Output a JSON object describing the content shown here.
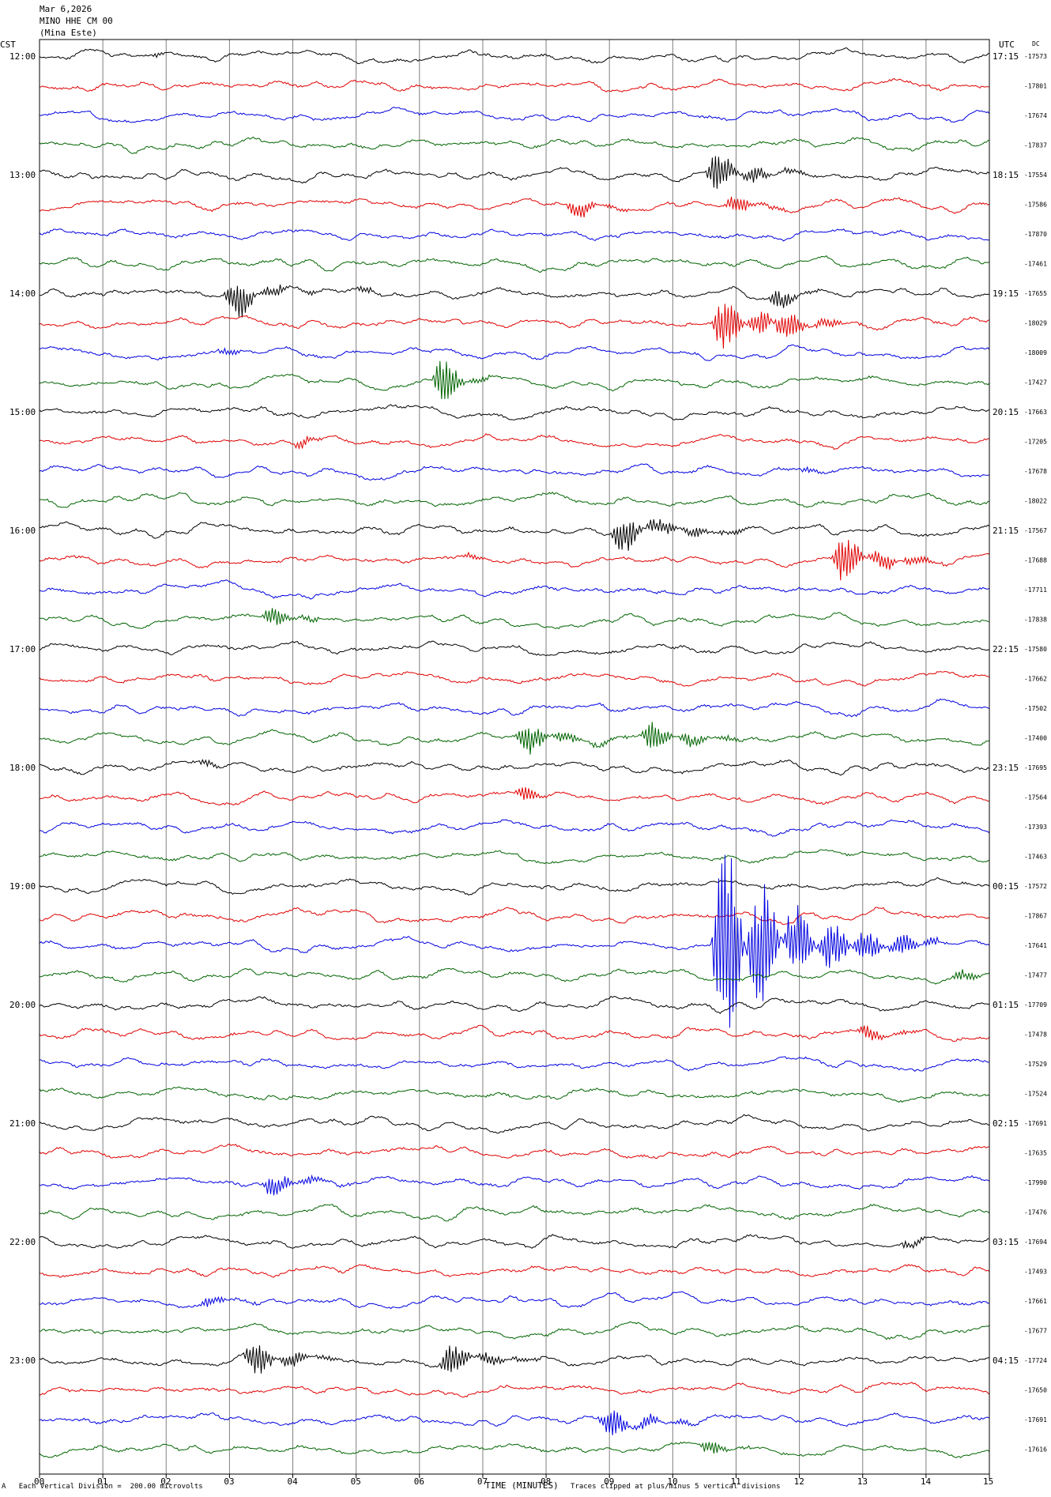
{
  "header": {
    "date": "Mar 6,2026",
    "station": "MINO HHE CM 00",
    "location": "(Mina Este)"
  },
  "labels": {
    "left_zone": "CST",
    "right_zone": "UTC",
    "dc": "DC"
  },
  "footer": {
    "scale_note": "Each Vertical Division =  200.00 microvolts",
    "scale_mark": "A",
    "x_title": "TIME (MINUTES)",
    "clip_note": "Traces clipped at plus/minus 5 vertical divisions"
  },
  "colors": {
    "cycle": [
      "#000000",
      "#e00000",
      "#0000e0",
      "#006400"
    ],
    "grid": "#808080",
    "frame": "#000000"
  },
  "chart_data": {
    "type": "line",
    "title": "",
    "xlabel": "TIME (MINUTES)",
    "xlim": [
      0,
      15
    ],
    "x_ticks": [
      "00",
      "01",
      "02",
      "03",
      "04",
      "05",
      "06",
      "07",
      "08",
      "09",
      "10",
      "11",
      "12",
      "13",
      "14",
      "15"
    ],
    "rows_per_hour": 4,
    "minutes_per_row": 15,
    "left_hour_labels": [
      "12:00",
      "13:00",
      "14:00",
      "15:00",
      "16:00",
      "17:00",
      "18:00",
      "19:00",
      "20:00",
      "21:00",
      "22:00",
      "23:00"
    ],
    "right_hour_labels": [
      "17:15",
      "18:15",
      "19:15",
      "20:15",
      "21:15",
      "22:15",
      "23:15",
      "00:15",
      "01:15",
      "02:15",
      "03:15",
      "04:15"
    ],
    "dc_offsets": [
      "-17573",
      "-17801",
      "-17674",
      "-17837",
      "-17554",
      "-17586",
      "-17870",
      "-17461",
      "-17655",
      "-18029",
      "-18009",
      "-17427",
      "-17663",
      "-17205",
      "-17678",
      "-18022",
      "-17567",
      "-17688",
      "-17711",
      "-17838",
      "-17580",
      "-17662",
      "-17502",
      "-17400",
      "-17695",
      "-17564",
      "-17393",
      "-17463",
      "-17572",
      "-17867",
      "-17641",
      "-17477",
      "-17709",
      "-17478",
      "-17529",
      "-17524",
      "-17691",
      "-17635",
      "-17990",
      "-17476",
      "-17694",
      "-17493",
      "-17661",
      "-17677",
      "-17724",
      "-17650",
      "-17691",
      "-17616"
    ],
    "events": [
      {
        "row": 0,
        "minute": 1.8,
        "amp": 0.5,
        "dur": 0.08
      },
      {
        "row": 4,
        "minute": 10.5,
        "amp": 1.0,
        "dur": 0.6
      },
      {
        "row": 5,
        "minute": 10.8,
        "amp": 0.5,
        "dur": 0.4
      },
      {
        "row": 5,
        "minute": 8.3,
        "amp": 0.5,
        "dur": 0.4
      },
      {
        "row": 8,
        "minute": 2.9,
        "amp": 1.0,
        "dur": 0.5
      },
      {
        "row": 8,
        "minute": 5.0,
        "amp": 0.4,
        "dur": 0.15
      },
      {
        "row": 8,
        "minute": 11.5,
        "amp": 0.7,
        "dur": 0.3
      },
      {
        "row": 9,
        "minute": 10.6,
        "amp": 1.2,
        "dur": 0.8
      },
      {
        "row": 9,
        "minute": 11.5,
        "amp": 0.7,
        "dur": 0.4
      },
      {
        "row": 10,
        "minute": 2.8,
        "amp": 0.3,
        "dur": 0.2
      },
      {
        "row": 11,
        "minute": 6.2,
        "amp": 1.5,
        "dur": 0.3
      },
      {
        "row": 13,
        "minute": 4.0,
        "amp": 0.5,
        "dur": 0.2
      },
      {
        "row": 14,
        "minute": 12.0,
        "amp": 0.3,
        "dur": 0.15
      },
      {
        "row": 16,
        "minute": 9.0,
        "amp": 0.8,
        "dur": 0.8
      },
      {
        "row": 17,
        "minute": 12.5,
        "amp": 1.2,
        "dur": 0.6
      },
      {
        "row": 17,
        "minute": 6.6,
        "amp": 0.3,
        "dur": 0.2
      },
      {
        "row": 19,
        "minute": 3.5,
        "amp": 0.6,
        "dur": 0.4
      },
      {
        "row": 23,
        "minute": 7.5,
        "amp": 0.8,
        "dur": 0.6
      },
      {
        "row": 23,
        "minute": 9.5,
        "amp": 0.8,
        "dur": 0.6
      },
      {
        "row": 24,
        "minute": 2.5,
        "amp": 0.3,
        "dur": 0.2
      },
      {
        "row": 25,
        "minute": 7.5,
        "amp": 0.6,
        "dur": 0.25
      },
      {
        "row": 30,
        "minute": 10.6,
        "amp": 4.0,
        "dur": 1.2
      },
      {
        "row": 31,
        "minute": 14.4,
        "amp": 0.4,
        "dur": 0.3
      },
      {
        "row": 33,
        "minute": 12.9,
        "amp": 0.4,
        "dur": 0.4
      },
      {
        "row": 38,
        "minute": 3.5,
        "amp": 0.6,
        "dur": 0.5
      },
      {
        "row": 40,
        "minute": 13.6,
        "amp": 0.4,
        "dur": 0.2
      },
      {
        "row": 42,
        "minute": 2.5,
        "amp": 0.3,
        "dur": 0.4
      },
      {
        "row": 44,
        "minute": 3.2,
        "amp": 0.8,
        "dur": 0.6
      },
      {
        "row": 44,
        "minute": 6.3,
        "amp": 0.8,
        "dur": 0.6
      },
      {
        "row": 46,
        "minute": 8.8,
        "amp": 0.8,
        "dur": 0.6
      },
      {
        "row": 47,
        "minute": 10.4,
        "amp": 0.5,
        "dur": 0.3
      }
    ]
  }
}
